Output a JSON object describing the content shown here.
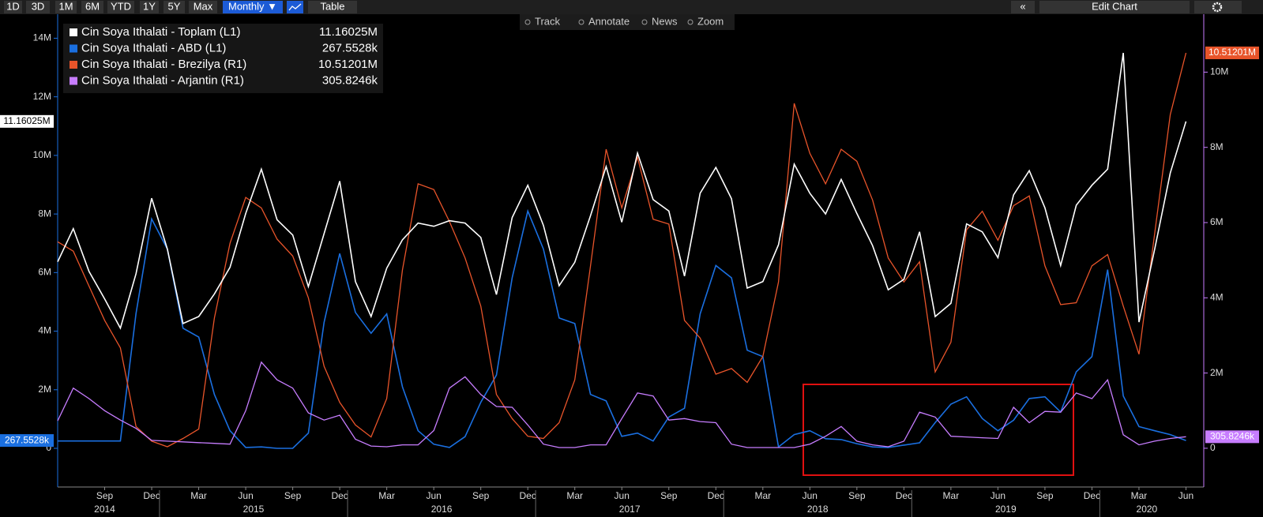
{
  "toolbar": {
    "ranges": [
      "1D",
      "3D",
      "1M",
      "6M",
      "YTD",
      "1Y",
      "5Y",
      "Max"
    ],
    "frequency": "Monthly ▼",
    "table": "Table",
    "collapse": "«",
    "edit": "Edit Chart"
  },
  "chart_tools": [
    "Track",
    "Annotate",
    "News",
    "Zoom"
  ],
  "chart_data": {
    "type": "line",
    "categories": [
      "2014-06",
      "2014-07",
      "2014-08",
      "2014-09",
      "2014-10",
      "2014-11",
      "2014-12",
      "2015-01",
      "2015-02",
      "2015-03",
      "2015-04",
      "2015-05",
      "2015-06",
      "2015-07",
      "2015-08",
      "2015-09",
      "2015-10",
      "2015-11",
      "2015-12",
      "2016-01",
      "2016-02",
      "2016-03",
      "2016-04",
      "2016-05",
      "2016-06",
      "2016-07",
      "2016-08",
      "2016-09",
      "2016-10",
      "2016-11",
      "2016-12",
      "2017-01",
      "2017-02",
      "2017-03",
      "2017-04",
      "2017-05",
      "2017-06",
      "2017-07",
      "2017-08",
      "2017-09",
      "2017-10",
      "2017-11",
      "2017-12",
      "2018-01",
      "2018-02",
      "2018-03",
      "2018-04",
      "2018-05",
      "2018-06",
      "2018-07",
      "2018-08",
      "2018-09",
      "2018-10",
      "2018-11",
      "2018-12",
      "2019-01",
      "2019-02",
      "2019-03",
      "2019-04",
      "2019-05",
      "2019-06",
      "2019-07",
      "2019-08",
      "2019-09",
      "2019-10",
      "2019-11",
      "2019-12",
      "2020-01",
      "2020-02",
      "2020-03",
      "2020-04",
      "2020-05",
      "2020-06"
    ],
    "xticks": [
      {
        "value": "2014-09",
        "label": "Sep"
      },
      {
        "value": "2014-12",
        "label": "Dec"
      },
      {
        "value": "2015-03",
        "label": "Mar"
      },
      {
        "value": "2015-06",
        "label": "Jun"
      },
      {
        "value": "2015-09",
        "label": "Sep"
      },
      {
        "value": "2015-12",
        "label": "Dec"
      },
      {
        "value": "2016-03",
        "label": "Mar"
      },
      {
        "value": "2016-06",
        "label": "Jun"
      },
      {
        "value": "2016-09",
        "label": "Sep"
      },
      {
        "value": "2016-12",
        "label": "Dec"
      },
      {
        "value": "2017-03",
        "label": "Mar"
      },
      {
        "value": "2017-06",
        "label": "Jun"
      },
      {
        "value": "2017-09",
        "label": "Sep"
      },
      {
        "value": "2017-12",
        "label": "Dec"
      },
      {
        "value": "2018-03",
        "label": "Mar"
      },
      {
        "value": "2018-06",
        "label": "Jun"
      },
      {
        "value": "2018-09",
        "label": "Sep"
      },
      {
        "value": "2018-12",
        "label": "Dec"
      },
      {
        "value": "2019-03",
        "label": "Mar"
      },
      {
        "value": "2019-06",
        "label": "Jun"
      },
      {
        "value": "2019-09",
        "label": "Sep"
      },
      {
        "value": "2019-12",
        "label": "Dec"
      },
      {
        "value": "2020-03",
        "label": "Mar"
      },
      {
        "value": "2020-06",
        "label": "Jun"
      }
    ],
    "years": [
      "2014",
      "2015",
      "2016",
      "2017",
      "2018",
      "2019",
      "2020"
    ],
    "ylim": [
      -1320000,
      14820000
    ],
    "yticks": [
      0,
      {
        "value": 2000000,
        "label": "2M"
      },
      {
        "value": 4000000,
        "label": "4M"
      },
      {
        "value": 6000000,
        "label": "6M"
      },
      {
        "value": 8000000,
        "label": "8M"
      },
      {
        "value": 10000000,
        "label": "10M"
      },
      {
        "value": 12000000,
        "label": "12M"
      },
      {
        "value": 14000000,
        "label": "14M"
      }
    ],
    "y2lim": [
      -1030000,
      11540000
    ],
    "y2ticks": [
      0,
      {
        "value": 2000000,
        "label": "2M"
      },
      {
        "value": 4000000,
        "label": "4M"
      },
      {
        "value": 6000000,
        "label": "6M"
      },
      {
        "value": 8000000,
        "label": "8M"
      },
      {
        "value": 10000000,
        "label": "10M"
      }
    ],
    "series": [
      {
        "name": "Cin Soya Ithalati - Toplam (L1)",
        "color": "#ffffff",
        "last_label": "11.16025M",
        "values": [
          6370000.0,
          7500000.0,
          6040000.0,
          5100000.0,
          4100000.0,
          5960000.0,
          8540000.0,
          6800000.0,
          4260000.0,
          4500000.0,
          5270000.0,
          6180000.0,
          8020000.0,
          9530000.0,
          7800000.0,
          7280000.0,
          5520000.0,
          7330000.0,
          9120000.0,
          5690000.0,
          4500000.0,
          6150000.0,
          7120000.0,
          7690000.0,
          7580000.0,
          7770000.0,
          7690000.0,
          7200000.0,
          5250000.0,
          7880000.0,
          8980000.0,
          7610000.0,
          5550000.0,
          6350000.0,
          7940000.0,
          9620000.0,
          7720000.0,
          10080000.0,
          8490000.0,
          8100000.0,
          5880000.0,
          8710000.0,
          9590000.0,
          8520000.0,
          5470000.0,
          5690000.0,
          6950000.0,
          9700000.0,
          8710000.0,
          8000000.0,
          9180000.0,
          8020000.0,
          6920000.0,
          5410000.0,
          5770000.0,
          7390000.0,
          4500000.0,
          4950000.0,
          7660000.0,
          7390000.0,
          6510000.0,
          8650000.0,
          9480000.0,
          8210000.0,
          6240000.0,
          8300000.0,
          8980000.0,
          9530000.0,
          13500000.0,
          4310000.0,
          6790000.0,
          9400000.0,
          11160250
        ]
      },
      {
        "name": "Cin Soya Ithalati - ABD (L1)",
        "color": "#1a6fe0",
        "last_label": "267.5528k",
        "values": [
          250000.0,
          250000.0,
          250000.0,
          250000.0,
          250000.0,
          4600000.0,
          7830000.0,
          6800000.0,
          4100000.0,
          3800000.0,
          1840000.0,
          600000.0,
          30000.0,
          50000.0,
          0,
          0,
          520000.0,
          4300000.0,
          6650000.0,
          4640000.0,
          3930000.0,
          4590000.0,
          2100000.0,
          600000.0,
          140000.0,
          30000.0,
          400000.0,
          1570000.0,
          2500000.0,
          5820000.0,
          8100000.0,
          6800000.0,
          4450000.0,
          4260000.0,
          1840000.0,
          1620000.0,
          410000.0,
          520000.0,
          250000.0,
          1070000.0,
          1370000.0,
          4590000.0,
          6240000.0,
          5820000.0,
          3350000.0,
          3130000.0,
          50000.0,
          470000.0,
          600000.0,
          330000.0,
          300000.0,
          160000.0,
          50000.0,
          30000.0,
          110000.0,
          190000.0,
          880000.0,
          1510000.0,
          1760000.0,
          1020000.0,
          600000.0,
          960000.0,
          1700000.0,
          1760000.0,
          1240000.0,
          2610000.0,
          3130000.0,
          6100000.0,
          1790000.0,
          740000.0,
          600000.0,
          470000.0,
          267552.8
        ]
      },
      {
        "name": "Cin Soya Ithalati - Brezilya (R1)",
        "color": "#e8542a",
        "axis": "y2",
        "last_label": "10.51201M",
        "values": [
          5490000.0,
          5240000.0,
          4310000.0,
          3400000.0,
          2670000.0,
          580000.0,
          190000.0,
          40000.0,
          260000.0,
          510000.0,
          3460000.0,
          5450000.0,
          6670000.0,
          6390000.0,
          5560000.0,
          5110000.0,
          4000000.0,
          2180000.0,
          1220000.0,
          620000.0,
          300000.0,
          1320000.0,
          4740000.0,
          7030000.0,
          6880000.0,
          6030000.0,
          5060000.0,
          3780000.0,
          1430000.0,
          790000.0,
          320000.0,
          260000.0,
          680000.0,
          1820000.0,
          4850000.0,
          7950000.0,
          6390000.0,
          7740000.0,
          6090000.0,
          5960000.0,
          3400000.0,
          2930000.0,
          1970000.0,
          2120000.0,
          1750000.0,
          2440000.0,
          4420000.0,
          9170000.0,
          7840000.0,
          7030000.0,
          7950000.0,
          7630000.0,
          6600000.0,
          5060000.0,
          4420000.0,
          4960000.0,
          2030000.0,
          2820000.0,
          5810000.0,
          6300000.0,
          5530000.0,
          6450000.0,
          6710000.0,
          4850000.0,
          3820000.0,
          3870000.0,
          4850000.0,
          5150000.0,
          3780000.0,
          2500000.0,
          5700000.0,
          8870000.0,
          10512010
        ]
      },
      {
        "name": "Cin Soya Ithalati - Arjantin (R1)",
        "color": "#c77dff",
        "axis": "y2",
        "last_label": "305.8246k",
        "values": [
          730000.0,
          1600000.0,
          1320000.0,
          1000000.0,
          750000.0,
          530000.0,
          210000.0,
          190000.0,
          170000.0,
          150000.0,
          130000.0,
          110000.0,
          1000000.0,
          2290000.0,
          1820000.0,
          1600000.0,
          940000.0,
          750000.0,
          880000.0,
          240000.0,
          60000.0,
          40000.0,
          90000.0,
          90000.0,
          470000.0,
          1600000.0,
          1900000.0,
          1430000.0,
          1110000.0,
          1090000.0,
          620000.0,
          110000.0,
          20000.0,
          20000.0,
          90000.0,
          90000.0,
          790000.0,
          1470000.0,
          1390000.0,
          750000.0,
          790000.0,
          710000.0,
          680000.0,
          110000.0,
          20000.0,
          20000.0,
          20000.0,
          20000.0,
          110000.0,
          320000.0,
          580000.0,
          190000.0,
          90000.0,
          40000.0,
          190000.0,
          960000.0,
          830000.0,
          320000.0,
          300000.0,
          280000.0,
          260000.0,
          1090000.0,
          680000.0,
          980000.0,
          960000.0,
          1470000.0,
          1320000.0,
          1820000.0,
          360000.0,
          90000.0,
          190000.0,
          260000.0,
          305824.6
        ]
      }
    ]
  }
}
